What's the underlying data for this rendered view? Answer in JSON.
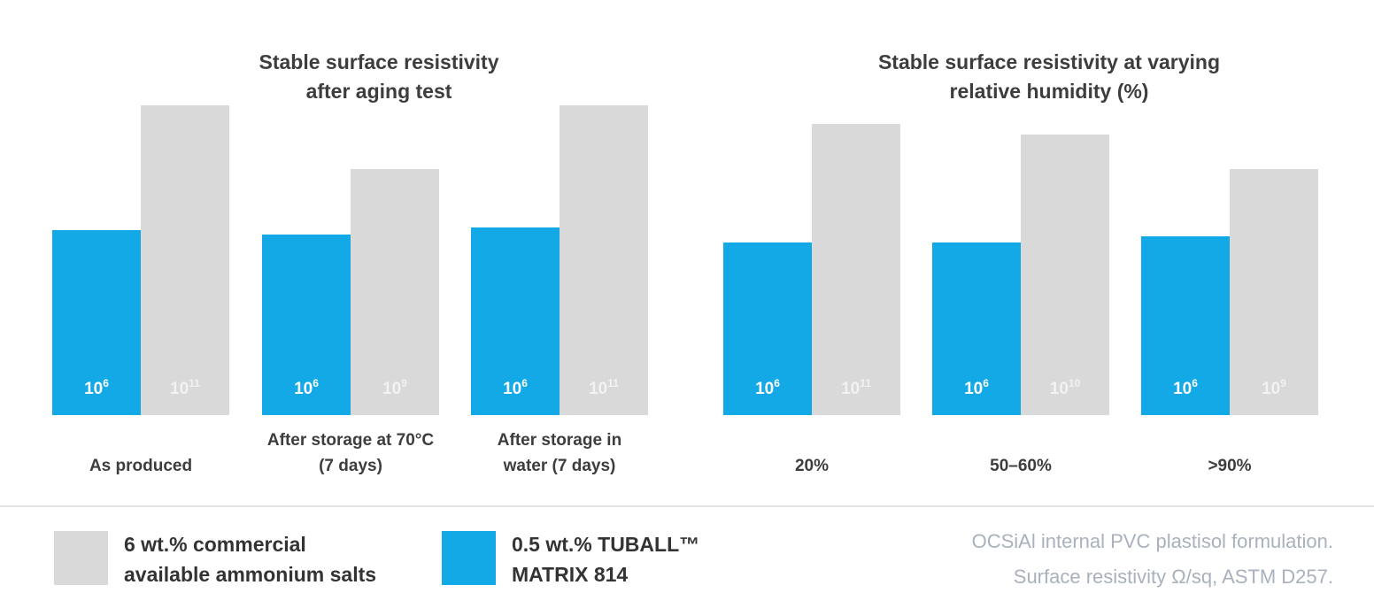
{
  "colors": {
    "blue": "#13a9e6",
    "gray": "#d9d9d9",
    "blue_label": "#ffffff",
    "gray_label": "#f2f2f2"
  },
  "chart_data": [
    {
      "type": "bar",
      "title": [
        "Stable surface resistivity",
        "after aging test"
      ],
      "unit": "Ω/sq",
      "scale": "log",
      "categories": [
        [
          "As produced"
        ],
        [
          "After storage at 70°C",
          "(7 days)"
        ],
        [
          "After storage in",
          "water (7 days)"
        ]
      ],
      "series": [
        {
          "name": "0.5 wt.% TUBALL™ MATRIX 814",
          "color": "#13a9e6",
          "exponents": [
            6,
            6,
            6
          ]
        },
        {
          "name": "6 wt.% commercial available ammonium salts",
          "color": "#d9d9d9",
          "exponents": [
            11,
            9,
            11
          ]
        }
      ]
    },
    {
      "type": "bar",
      "title": [
        "Stable surface resistivity at varying",
        "relative humidity (%)"
      ],
      "unit": "Ω/sq",
      "scale": "log",
      "categories": [
        [
          "20%"
        ],
        [
          "50–60%"
        ],
        [
          ">90%"
        ]
      ],
      "series": [
        {
          "name": "0.5 wt.% TUBALL™ MATRIX 814",
          "color": "#13a9e6",
          "exponents": [
            6,
            6,
            6
          ]
        },
        {
          "name": "6 wt.% commercial available ammonium salts",
          "color": "#d9d9d9",
          "exponents": [
            11,
            10,
            9
          ]
        }
      ]
    }
  ],
  "legend": {
    "gray_line1": "6 wt.% commercial",
    "gray_line2": "available ammonium salts",
    "blue_line1": "0.5 wt.% TUBALL™",
    "blue_line2": "MATRIX 814"
  },
  "note": {
    "line1": "OCSiAl internal PVC plastisol formulation.",
    "line2": "Surface resistivity Ω/sq, ASTM D257."
  }
}
